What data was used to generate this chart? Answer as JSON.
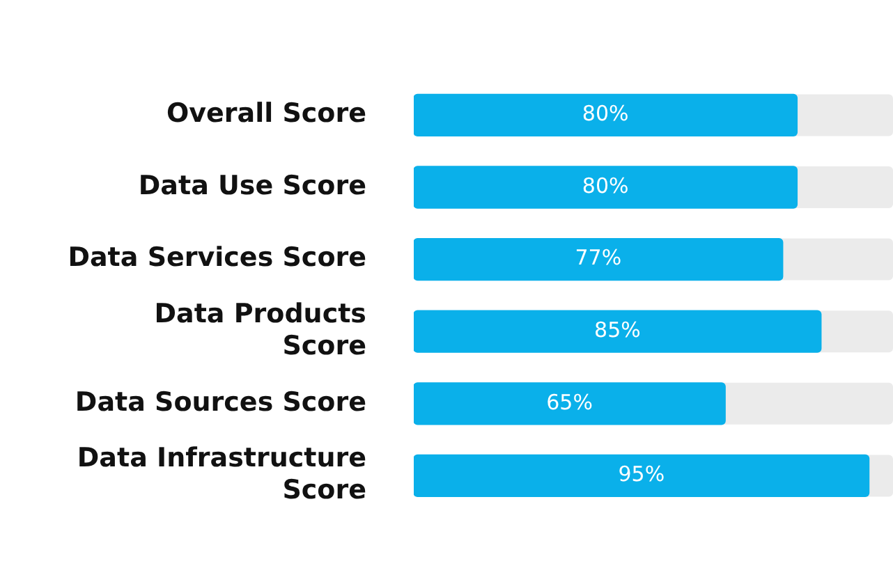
{
  "chart_data": {
    "type": "bar",
    "orientation": "horizontal",
    "categories": [
      "Overall Score",
      "Data Use Score",
      "Data Services Score",
      "Data Products Score",
      "Data Sources Score",
      "Data Infrastructure Score"
    ],
    "values": [
      80,
      80,
      77,
      85,
      65,
      95
    ],
    "value_labels": [
      "80%",
      "80%",
      "77%",
      "85%",
      "65%",
      "95%"
    ],
    "color": "#0ab0ea",
    "xlim": [
      0,
      100
    ],
    "tick_labels": "y",
    "grid": false,
    "legend": false
  }
}
